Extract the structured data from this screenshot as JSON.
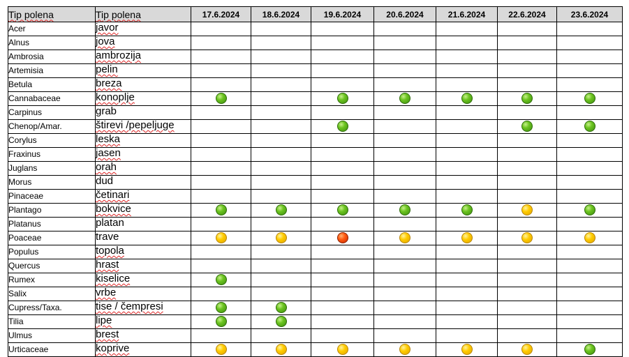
{
  "table": {
    "header": {
      "latin": "Tip polena",
      "local": "Tip polena",
      "dates": [
        "17.6.2024",
        "18.6.2024",
        "19.6.2024",
        "20.6.2024",
        "21.6.2024",
        "22.6.2024",
        "23.6.2024"
      ]
    },
    "levels": {
      "G": {
        "name": "green",
        "color": "#6cc420"
      },
      "Y": {
        "name": "yellow",
        "color": "#ffcc00"
      },
      "R": {
        "name": "red",
        "color": "#ff5a10"
      }
    },
    "rows": [
      {
        "latin": "Acer",
        "local": "javor",
        "days": [
          "",
          "",
          "",
          "",
          "",
          "",
          ""
        ]
      },
      {
        "latin": "Alnus",
        "local": "jova",
        "days": [
          "",
          "",
          "",
          "",
          "",
          "",
          ""
        ]
      },
      {
        "latin": "Ambrosia",
        "local": "ambrozija",
        "days": [
          "",
          "",
          "",
          "",
          "",
          "",
          ""
        ]
      },
      {
        "latin": "Artemisia",
        "local": "pelin",
        "days": [
          "",
          "",
          "",
          "",
          "",
          "",
          ""
        ]
      },
      {
        "latin": "Betula",
        "local": "breza",
        "days": [
          "",
          "",
          "",
          "",
          "",
          "",
          ""
        ]
      },
      {
        "latin": "Cannabaceae",
        "local": "konoplje",
        "days": [
          "G",
          "",
          "G",
          "G",
          "G",
          "G",
          "G"
        ]
      },
      {
        "latin": "Carpinus",
        "local": "grab",
        "days": [
          "",
          "",
          "",
          "",
          "",
          "",
          ""
        ]
      },
      {
        "latin": "Chenop/Amar.",
        "local": "štirevi /pepeljuge",
        "days": [
          "",
          "",
          "G",
          "",
          "",
          "G",
          "G"
        ]
      },
      {
        "latin": "Corylus",
        "local": "leska",
        "days": [
          "",
          "",
          "",
          "",
          "",
          "",
          ""
        ]
      },
      {
        "latin": "Fraxinus",
        "local": "jasen",
        "days": [
          "",
          "",
          "",
          "",
          "",
          "",
          ""
        ]
      },
      {
        "latin": "Juglans",
        "local": "orah",
        "days": [
          "",
          "",
          "",
          "",
          "",
          "",
          ""
        ]
      },
      {
        "latin": "Morus",
        "local": "dud",
        "days": [
          "",
          "",
          "",
          "",
          "",
          "",
          ""
        ]
      },
      {
        "latin": "Pinaceae",
        "local": "četinari",
        "days": [
          "",
          "",
          "",
          "",
          "",
          "",
          ""
        ]
      },
      {
        "latin": "Plantago",
        "local": "bokvice",
        "days": [
          "G",
          "G",
          "G",
          "G",
          "G",
          "Y",
          "G"
        ]
      },
      {
        "latin": "Platanus",
        "local": "platan",
        "days": [
          "",
          "",
          "",
          "",
          "",
          "",
          ""
        ]
      },
      {
        "latin": "Poaceae",
        "local": "trave",
        "days": [
          "Y",
          "Y",
          "R",
          "Y",
          "Y",
          "Y",
          "Y"
        ]
      },
      {
        "latin": "Populus",
        "local": "topola",
        "days": [
          "",
          "",
          "",
          "",
          "",
          "",
          ""
        ]
      },
      {
        "latin": "Quercus",
        "local": "hrast",
        "days": [
          "",
          "",
          "",
          "",
          "",
          "",
          ""
        ]
      },
      {
        "latin": "Rumex",
        "local": "kiselice",
        "days": [
          "G",
          "",
          "",
          "",
          "",
          "",
          ""
        ]
      },
      {
        "latin": "Salix",
        "local": "vrbe",
        "days": [
          "",
          "",
          "",
          "",
          "",
          "",
          ""
        ]
      },
      {
        "latin": "Cupress/Taxa.",
        "local": "tise / čempresi",
        "days": [
          "G",
          "G",
          "",
          "",
          "",
          "",
          ""
        ]
      },
      {
        "latin": "Tilia",
        "local": "lipe",
        "days": [
          "G",
          "G",
          "",
          "",
          "",
          "",
          ""
        ]
      },
      {
        "latin": "Ulmus",
        "local": "brest",
        "days": [
          "",
          "",
          "",
          "",
          "",
          "",
          ""
        ]
      },
      {
        "latin": "Urticaceae",
        "local": "koprive",
        "days": [
          "Y",
          "Y",
          "Y",
          "Y",
          "Y",
          "Y",
          "G"
        ]
      }
    ]
  }
}
